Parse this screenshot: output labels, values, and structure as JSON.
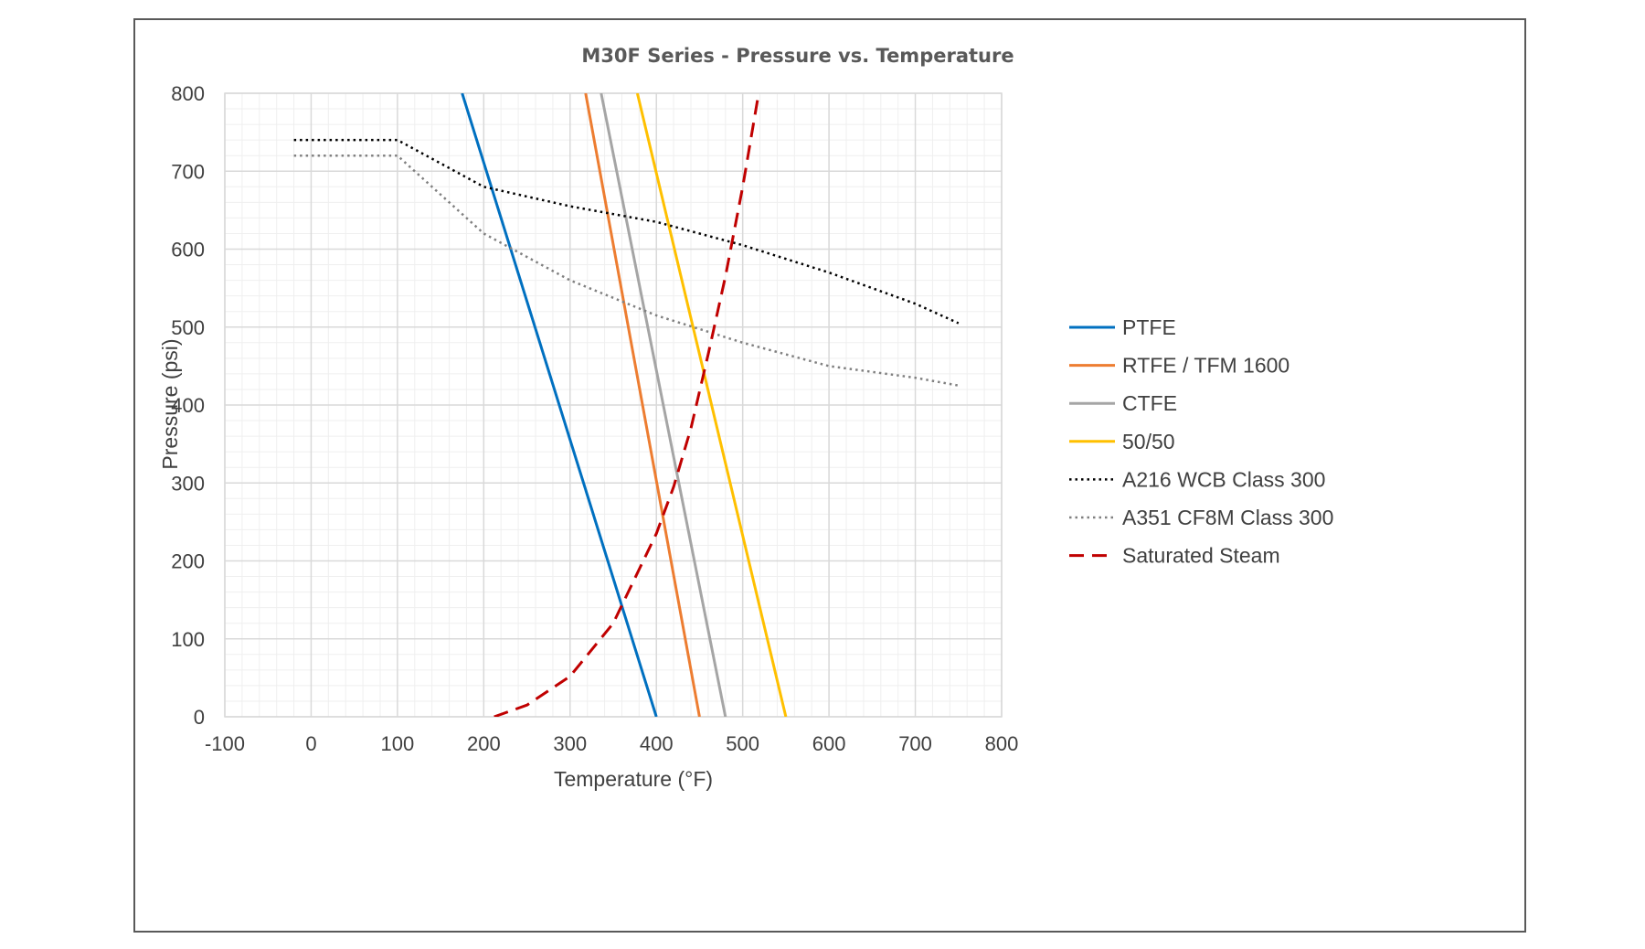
{
  "chart_data": {
    "type": "line",
    "title": "M30F Series - Pressure vs. Temperature",
    "xlabel": "Temperature (°F)",
    "ylabel": "Pressure (psi)",
    "xlim": [
      -100,
      800
    ],
    "ylim": [
      0,
      800
    ],
    "x_ticks": [
      "-100",
      "0",
      "100",
      "200",
      "300",
      "400",
      "500",
      "600",
      "700",
      "800"
    ],
    "y_ticks": [
      "0",
      "100",
      "200",
      "300",
      "400",
      "500",
      "600",
      "700",
      "800"
    ],
    "grid": true,
    "legend_position": "right",
    "series": [
      {
        "name": "PTFE",
        "color": "#0070C0",
        "style": "solid",
        "points": [
          [
            175,
            800
          ],
          [
            400,
            0
          ]
        ]
      },
      {
        "name": "RTFE / TFM 1600",
        "color": "#ED7D31",
        "style": "solid",
        "points": [
          [
            318,
            800
          ],
          [
            450,
            0
          ]
        ]
      },
      {
        "name": "CTFE",
        "color": "#A5A5A5",
        "style": "solid",
        "points": [
          [
            336,
            800
          ],
          [
            480,
            0
          ]
        ]
      },
      {
        "name": "50/50",
        "color": "#FFC000",
        "style": "solid",
        "points": [
          [
            378,
            800
          ],
          [
            550,
            0
          ]
        ]
      },
      {
        "name": "A216 WCB Class 300",
        "color": "#000000",
        "style": "dotted",
        "points": [
          [
            -20,
            740
          ],
          [
            100,
            740
          ],
          [
            200,
            680
          ],
          [
            300,
            655
          ],
          [
            400,
            635
          ],
          [
            500,
            605
          ],
          [
            600,
            570
          ],
          [
            700,
            530
          ],
          [
            750,
            505
          ]
        ]
      },
      {
        "name": "A351 CF8M Class 300",
        "color": "#808080",
        "style": "dotted",
        "points": [
          [
            -20,
            720
          ],
          [
            100,
            720
          ],
          [
            200,
            620
          ],
          [
            300,
            560
          ],
          [
            400,
            515
          ],
          [
            500,
            480
          ],
          [
            600,
            450
          ],
          [
            700,
            435
          ],
          [
            750,
            425
          ]
        ]
      },
      {
        "name": "Saturated Steam",
        "color": "#C00000",
        "style": "dashed",
        "points": [
          [
            212,
            0
          ],
          [
            250,
            15
          ],
          [
            300,
            52
          ],
          [
            350,
            120
          ],
          [
            400,
            235
          ],
          [
            420,
            295
          ],
          [
            440,
            370
          ],
          [
            460,
            465
          ],
          [
            480,
            565
          ],
          [
            500,
            680
          ],
          [
            520,
            810
          ]
        ]
      }
    ]
  }
}
